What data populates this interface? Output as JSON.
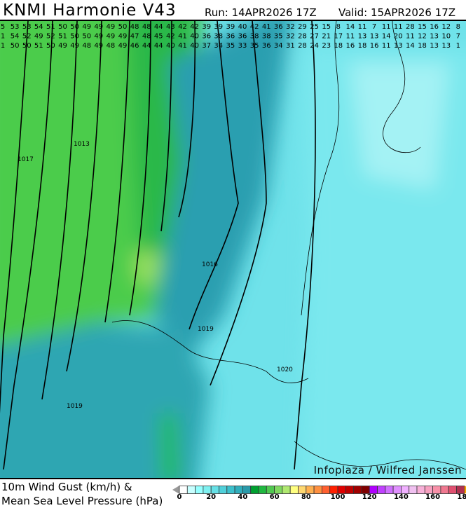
{
  "header": {
    "title": "KNMI Harmonie V43",
    "run": "Run: 14APR2026 17Z",
    "valid": "Valid: 15APR2026 17Z"
  },
  "map": {
    "watermark": "Infoplaza / Wilfred Janssen",
    "gust_rows": [
      [
        5,
        53,
        53,
        54,
        51,
        50,
        50,
        49,
        49,
        49,
        50,
        48,
        48,
        44,
        43,
        42,
        42,
        39,
        39,
        39,
        40,
        42,
        41,
        36,
        32,
        29,
        25,
        15,
        8,
        14,
        11,
        7,
        11,
        11,
        28,
        15,
        16,
        12,
        8
      ],
      [
        1,
        54,
        52,
        49,
        52,
        51,
        50,
        50,
        49,
        49,
        49,
        47,
        48,
        45,
        42,
        41,
        40,
        36,
        38,
        36,
        36,
        38,
        38,
        35,
        32,
        28,
        27,
        21,
        17,
        11,
        13,
        13,
        14,
        20,
        11,
        12,
        13,
        10,
        7
      ],
      [
        1,
        50,
        50,
        51,
        50,
        49,
        49,
        48,
        49,
        48,
        49,
        46,
        44,
        44,
        40,
        41,
        40,
        37,
        34,
        35,
        33,
        35,
        36,
        34,
        31,
        28,
        24,
        23,
        18,
        16,
        18,
        16,
        11,
        13,
        14,
        18,
        13,
        13,
        1
      ]
    ],
    "isobar_labels": [
      "1013",
      "1016",
      "1019",
      "1019",
      "1020",
      "1017"
    ],
    "colors": {
      "strong_green": "#00b030",
      "green": "#4ccc4c",
      "teal": "#2a9fb0",
      "cyan": "#66dde8",
      "pale_cyan": "#9ff0f2"
    }
  },
  "legend": {
    "line1": "10m Wind Gust (km/h) &",
    "line2": "Mean Sea Level Pressure (hPa)",
    "min": 0,
    "max": 180,
    "step": 5,
    "ticks": [
      "0",
      "20",
      "40",
      "60",
      "80",
      "100",
      "120",
      "140",
      "160",
      "180"
    ],
    "colors": [
      "#ffffff",
      "#c8ffff",
      "#96ffff",
      "#7ef0f0",
      "#66e0e6",
      "#50d0da",
      "#3cc0cc",
      "#30aebc",
      "#2a9aaa",
      "#00a030",
      "#20b840",
      "#50c850",
      "#80d860",
      "#b0e870",
      "#ffff80",
      "#ffd870",
      "#ffb050",
      "#ff9040",
      "#ff6030",
      "#ff2000",
      "#e00000",
      "#c00000",
      "#a00000",
      "#800000",
      "#b000ff",
      "#c040ff",
      "#d070ff",
      "#e090ff",
      "#f0b0ff",
      "#f0c0f0",
      "#f8b0d8",
      "#f8a0c0",
      "#f890a8",
      "#f07890",
      "#e05070",
      "#b03050"
    ]
  }
}
